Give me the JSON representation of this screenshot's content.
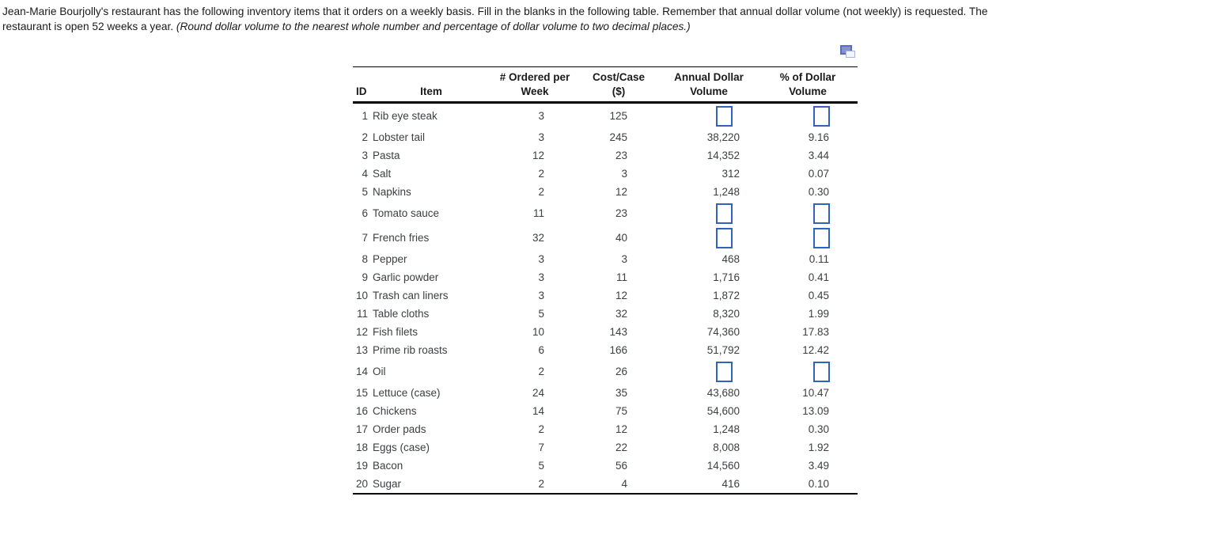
{
  "intro": {
    "line1": "Jean-Marie Bourjolly's restaurant has the following inventory items that it orders on a weekly basis. Fill in the blanks in the following table. Remember that annual dollar volume (not weekly) is requested. The",
    "line2_normal": "restaurant is open 52 weeks a year. ",
    "line2_italic": "(Round dollar volume to the nearest whole number and percentage of dollar volume to two decimal places.)"
  },
  "icons": {
    "copy_table_icon": "two-overlapping-rectangles"
  },
  "colors": {
    "input_box_border": "#3163BE",
    "table_rule": "#000000",
    "body_text": "#1A1A1A",
    "cell_text": "#3C4043",
    "copy_icon_blue": "#8595CC"
  },
  "table": {
    "headers": {
      "id": "ID",
      "item": "Item",
      "ordered_line1": "# Ordered per",
      "ordered_line2": "Week",
      "cost_line1": "Cost/Case",
      "cost_line2": "($)",
      "annual_line1": "Annual Dollar",
      "annual_line2": "Volume",
      "pct_line1": "% of Dollar",
      "pct_line2": "Volume"
    },
    "rows": [
      {
        "id": 1,
        "item": "Rib eye steak",
        "ordered": "3",
        "cost": "125",
        "annual": null,
        "pct": null
      },
      {
        "id": 2,
        "item": "Lobster tail",
        "ordered": "3",
        "cost": "245",
        "annual": "38,220",
        "pct": "9.16"
      },
      {
        "id": 3,
        "item": "Pasta",
        "ordered": "12",
        "cost": "23",
        "annual": "14,352",
        "pct": "3.44"
      },
      {
        "id": 4,
        "item": "Salt",
        "ordered": "2",
        "cost": "3",
        "annual": "312",
        "pct": "0.07"
      },
      {
        "id": 5,
        "item": "Napkins",
        "ordered": "2",
        "cost": "12",
        "annual": "1,248",
        "pct": "0.30"
      },
      {
        "id": 6,
        "item": "Tomato sauce",
        "ordered": "11",
        "cost": "23",
        "annual": null,
        "pct": null
      },
      {
        "id": 7,
        "item": "French fries",
        "ordered": "32",
        "cost": "40",
        "annual": null,
        "pct": null
      },
      {
        "id": 8,
        "item": "Pepper",
        "ordered": "3",
        "cost": "3",
        "annual": "468",
        "pct": "0.11"
      },
      {
        "id": 9,
        "item": "Garlic powder",
        "ordered": "3",
        "cost": "11",
        "annual": "1,716",
        "pct": "0.41"
      },
      {
        "id": 10,
        "item": "Trash can liners",
        "ordered": "3",
        "cost": "12",
        "annual": "1,872",
        "pct": "0.45"
      },
      {
        "id": 11,
        "item": "Table cloths",
        "ordered": "5",
        "cost": "32",
        "annual": "8,320",
        "pct": "1.99"
      },
      {
        "id": 12,
        "item": "Fish filets",
        "ordered": "10",
        "cost": "143",
        "annual": "74,360",
        "pct": "17.83"
      },
      {
        "id": 13,
        "item": "Prime rib roasts",
        "ordered": "6",
        "cost": "166",
        "annual": "51,792",
        "pct": "12.42"
      },
      {
        "id": 14,
        "item": "Oil",
        "ordered": "2",
        "cost": "26",
        "annual": null,
        "pct": null
      },
      {
        "id": 15,
        "item": "Lettuce (case)",
        "ordered": "24",
        "cost": "35",
        "annual": "43,680",
        "pct": "10.47"
      },
      {
        "id": 16,
        "item": "Chickens",
        "ordered": "14",
        "cost": "75",
        "annual": "54,600",
        "pct": "13.09"
      },
      {
        "id": 17,
        "item": "Order pads",
        "ordered": "2",
        "cost": "12",
        "annual": "1,248",
        "pct": "0.30"
      },
      {
        "id": 18,
        "item": "Eggs (case)",
        "ordered": "7",
        "cost": "22",
        "annual": "8,008",
        "pct": "1.92"
      },
      {
        "id": 19,
        "item": "Bacon",
        "ordered": "5",
        "cost": "56",
        "annual": "14,560",
        "pct": "3.49"
      },
      {
        "id": 20,
        "item": "Sugar",
        "ordered": "2",
        "cost": "4",
        "annual": "416",
        "pct": "0.10"
      }
    ]
  }
}
